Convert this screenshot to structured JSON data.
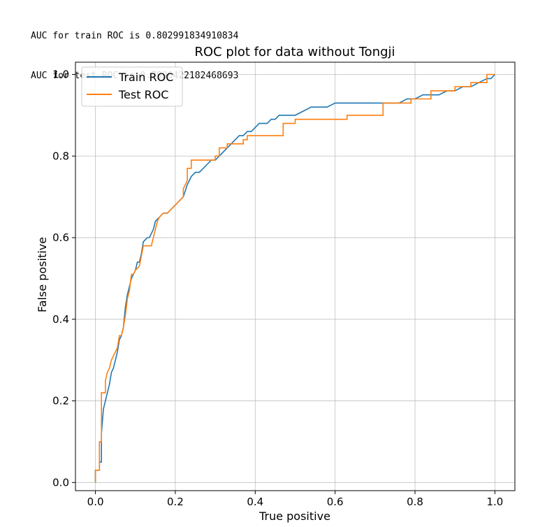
{
  "output": {
    "lines": [
      "AUC for train ROC is 0.802991834910834",
      "AUC for test ROC is 0.7996422182468693"
    ]
  },
  "chart_data": {
    "type": "line",
    "title": "ROC plot for data without Tongji",
    "xlabel": "True positive",
    "ylabel": "False positive",
    "xlim": [
      -0.05,
      1.05
    ],
    "ylim": [
      -0.02,
      1.03
    ],
    "xticks": [
      "0.0",
      "0.2",
      "0.4",
      "0.6",
      "0.8",
      "1.0"
    ],
    "yticks": [
      "0.0",
      "0.2",
      "0.4",
      "0.6",
      "0.8",
      "1.0"
    ],
    "grid": true,
    "legend_position": "top-left",
    "series": [
      {
        "name": "Train ROC",
        "color": "#1f77b4",
        "x": [
          0,
          0,
          0.01,
          0.01,
          0.015,
          0.015,
          0.02,
          0.025,
          0.03,
          0.035,
          0.04,
          0.045,
          0.05,
          0.055,
          0.06,
          0.065,
          0.07,
          0.075,
          0.08,
          0.085,
          0.09,
          0.1,
          0.105,
          0.11,
          0.115,
          0.12,
          0.13,
          0.135,
          0.14,
          0.145,
          0.15,
          0.16,
          0.17,
          0.18,
          0.19,
          0.2,
          0.21,
          0.22,
          0.23,
          0.24,
          0.25,
          0.26,
          0.27,
          0.28,
          0.29,
          0.3,
          0.31,
          0.32,
          0.33,
          0.34,
          0.35,
          0.36,
          0.37,
          0.38,
          0.39,
          0.4,
          0.41,
          0.42,
          0.43,
          0.44,
          0.45,
          0.46,
          0.47,
          0.48,
          0.5,
          0.52,
          0.54,
          0.56,
          0.58,
          0.6,
          0.64,
          0.68,
          0.72,
          0.76,
          0.78,
          0.8,
          0.82,
          0.84,
          0.86,
          0.88,
          0.9,
          0.92,
          0.94,
          0.96,
          0.98,
          0.99,
          1.0
        ],
        "y": [
          0,
          0.03,
          0.03,
          0.05,
          0.05,
          0.12,
          0.18,
          0.2,
          0.22,
          0.24,
          0.27,
          0.28,
          0.3,
          0.32,
          0.35,
          0.36,
          0.38,
          0.43,
          0.46,
          0.48,
          0.5,
          0.52,
          0.54,
          0.54,
          0.56,
          0.59,
          0.6,
          0.6,
          0.61,
          0.62,
          0.64,
          0.65,
          0.66,
          0.66,
          0.67,
          0.68,
          0.69,
          0.7,
          0.73,
          0.75,
          0.76,
          0.76,
          0.77,
          0.78,
          0.79,
          0.79,
          0.8,
          0.81,
          0.82,
          0.83,
          0.84,
          0.85,
          0.85,
          0.86,
          0.86,
          0.87,
          0.88,
          0.88,
          0.88,
          0.89,
          0.89,
          0.9,
          0.9,
          0.9,
          0.9,
          0.91,
          0.92,
          0.92,
          0.92,
          0.93,
          0.93,
          0.93,
          0.93,
          0.93,
          0.94,
          0.94,
          0.95,
          0.95,
          0.95,
          0.96,
          0.96,
          0.97,
          0.97,
          0.98,
          0.99,
          0.99,
          1.0
        ]
      },
      {
        "name": "Test ROC",
        "color": "#ff7f0e",
        "x": [
          0,
          0,
          0.01,
          0.01,
          0.015,
          0.015,
          0.025,
          0.025,
          0.03,
          0.035,
          0.04,
          0.045,
          0.055,
          0.06,
          0.065,
          0.07,
          0.075,
          0.08,
          0.085,
          0.09,
          0.095,
          0.1,
          0.11,
          0.12,
          0.125,
          0.14,
          0.145,
          0.15,
          0.155,
          0.16,
          0.17,
          0.18,
          0.2,
          0.22,
          0.22,
          0.23,
          0.23,
          0.24,
          0.24,
          0.3,
          0.3,
          0.31,
          0.31,
          0.33,
          0.33,
          0.37,
          0.37,
          0.38,
          0.38,
          0.42,
          0.42,
          0.47,
          0.47,
          0.5,
          0.5,
          0.53,
          0.53,
          0.63,
          0.63,
          0.72,
          0.72,
          0.79,
          0.79,
          0.8,
          0.8,
          0.84,
          0.84,
          0.9,
          0.9,
          0.94,
          0.94,
          0.98,
          0.98,
          1.0
        ],
        "y": [
          0,
          0.03,
          0.03,
          0.1,
          0.1,
          0.22,
          0.22,
          0.25,
          0.27,
          0.28,
          0.3,
          0.31,
          0.33,
          0.36,
          0.36,
          0.38,
          0.41,
          0.45,
          0.47,
          0.51,
          0.51,
          0.52,
          0.53,
          0.58,
          0.58,
          0.58,
          0.6,
          0.62,
          0.64,
          0.65,
          0.66,
          0.66,
          0.68,
          0.7,
          0.72,
          0.74,
          0.77,
          0.77,
          0.79,
          0.79,
          0.8,
          0.8,
          0.82,
          0.82,
          0.83,
          0.83,
          0.84,
          0.84,
          0.85,
          0.85,
          0.85,
          0.85,
          0.88,
          0.88,
          0.89,
          0.89,
          0.89,
          0.89,
          0.9,
          0.9,
          0.93,
          0.93,
          0.94,
          0.94,
          0.94,
          0.94,
          0.96,
          0.96,
          0.97,
          0.97,
          0.98,
          0.98,
          1.0,
          1.0
        ]
      }
    ]
  }
}
